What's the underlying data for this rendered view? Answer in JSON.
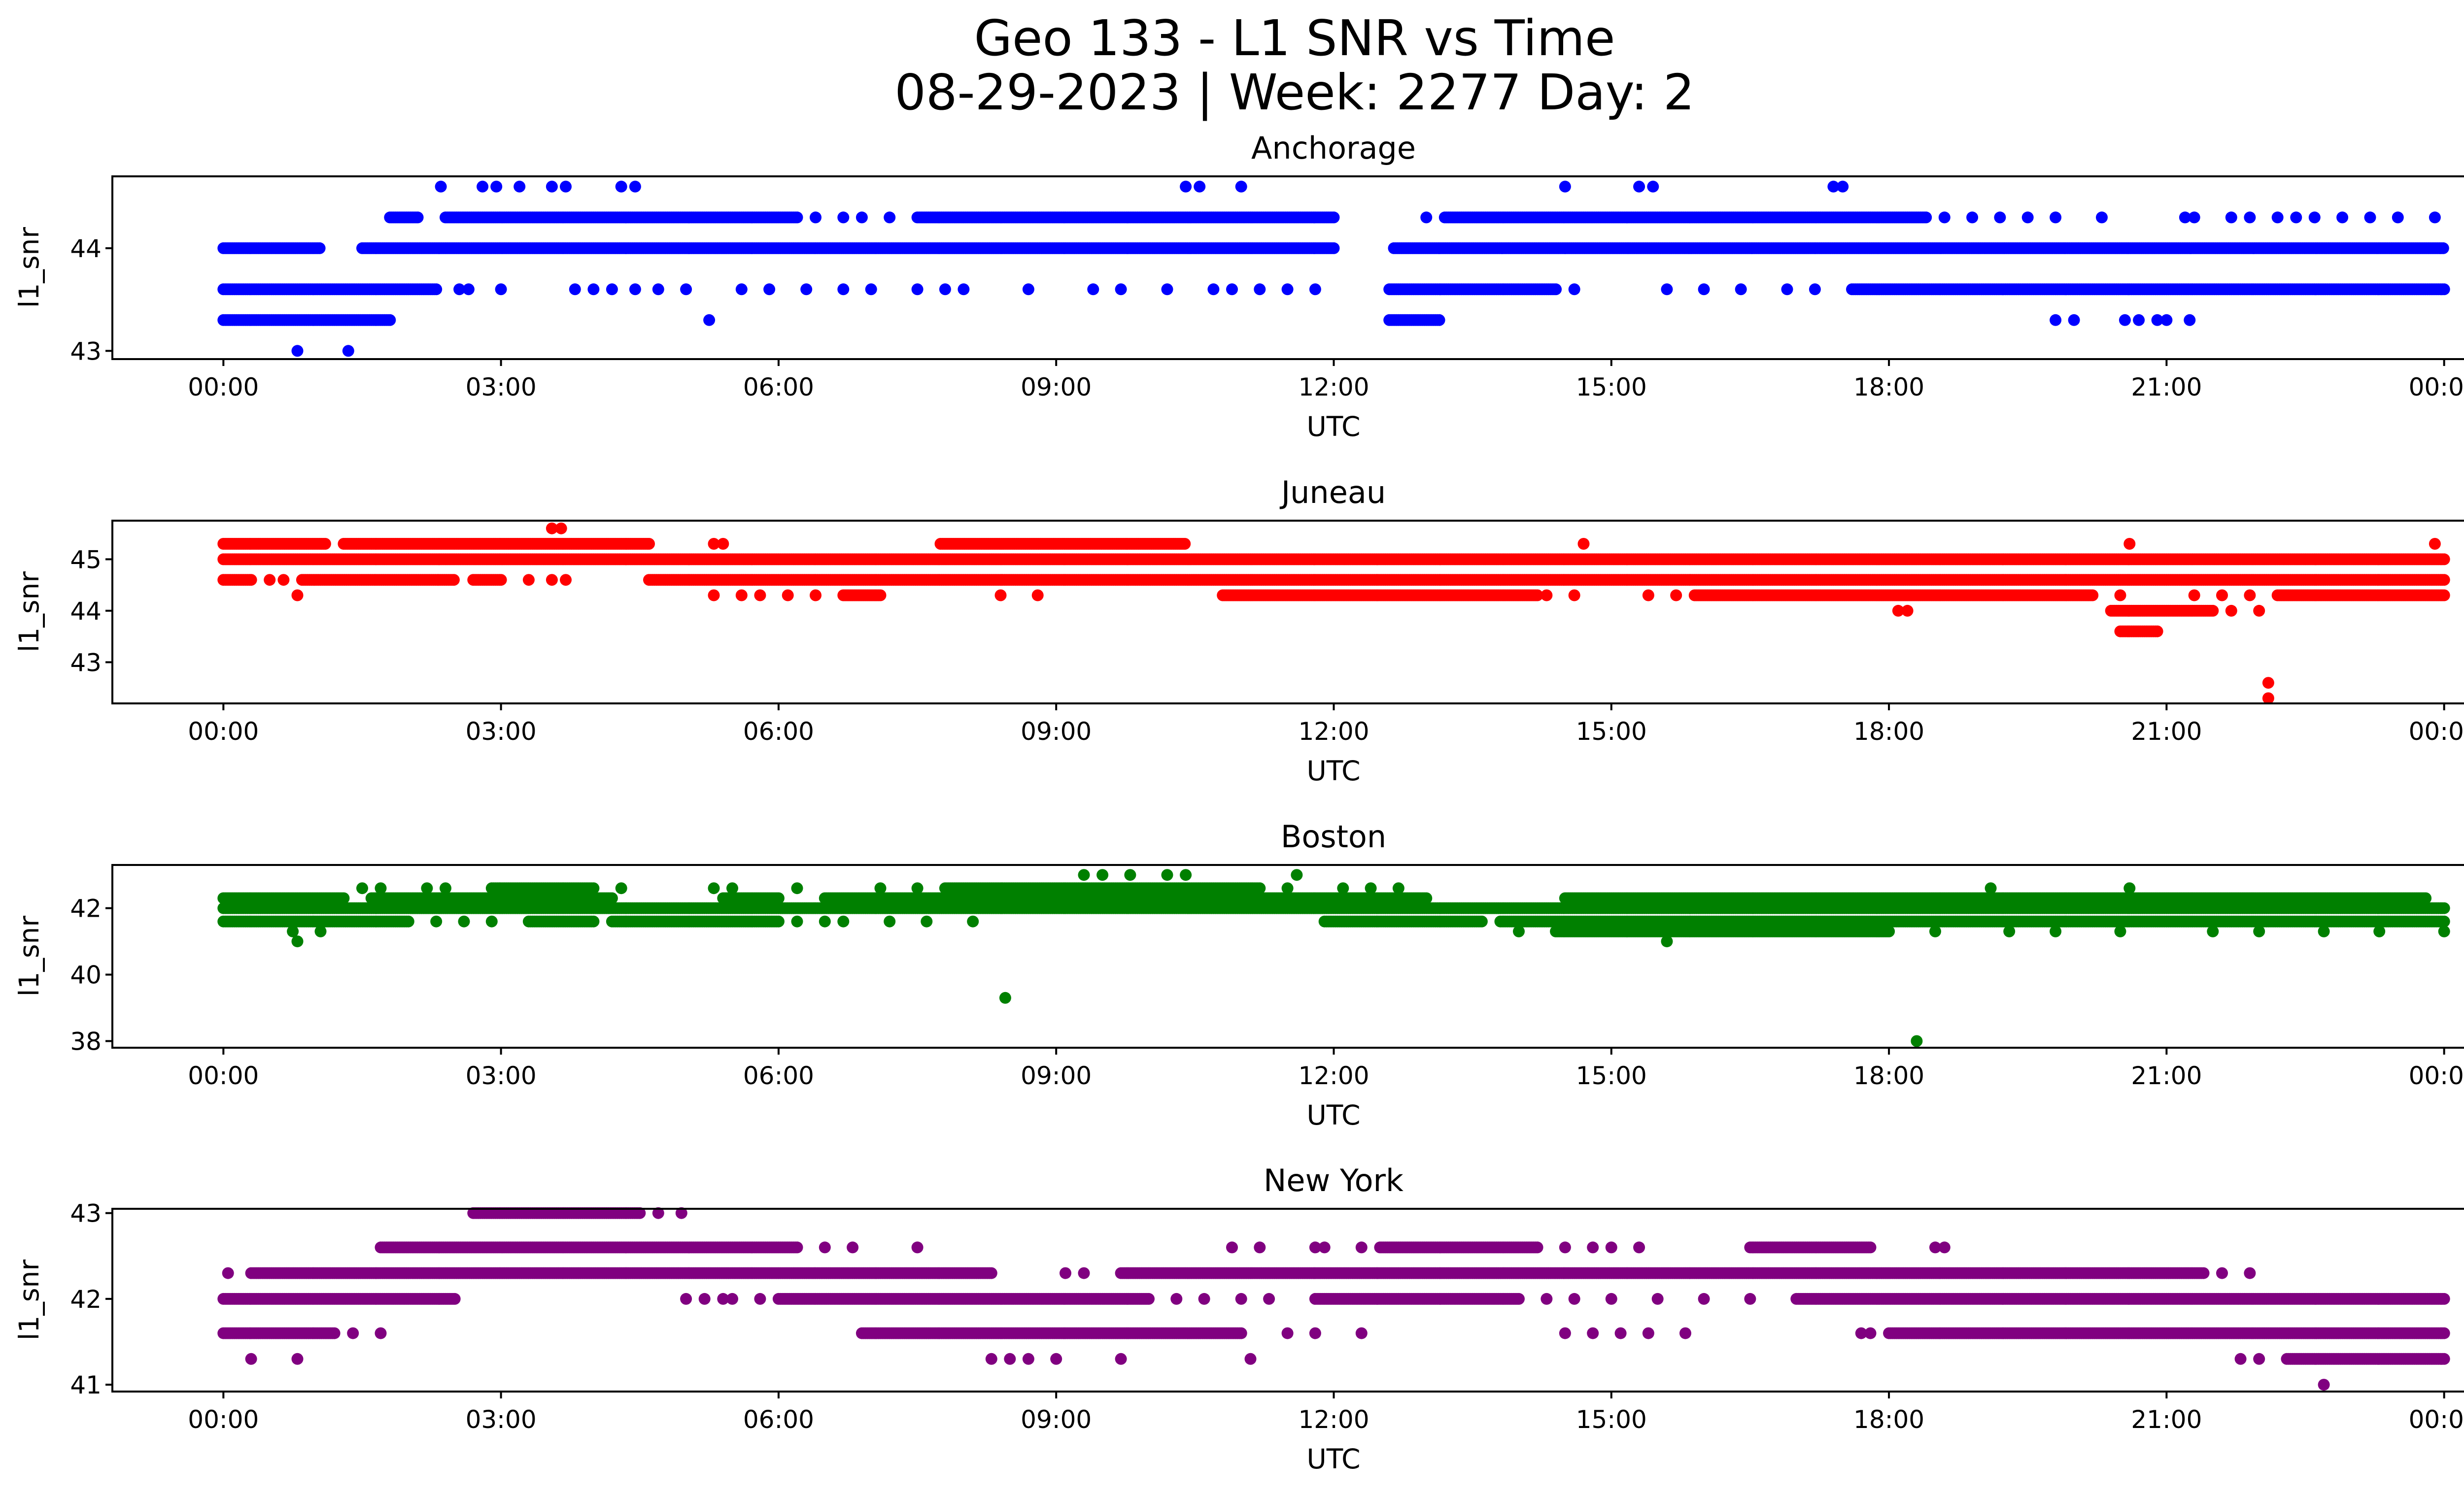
{
  "figure": {
    "title_line1": "Geo 133 - L1 SNR vs Time",
    "title_line2": "08-29-2023 | Week: 2277 Day: 2"
  },
  "chart_data": [
    {
      "type": "scatter",
      "title": "Anchorage",
      "xlabel": "UTC",
      "ylabel": "l1_snr",
      "color": "#0000ff",
      "x_ticks": [
        "00:00",
        "03:00",
        "06:00",
        "09:00",
        "12:00",
        "15:00",
        "18:00",
        "21:00",
        "00:00"
      ],
      "xlim_hours": [
        -1.2,
        25.2
      ],
      "ylim": [
        42.92,
        44.7
      ],
      "y_ticks": [
        43,
        44
      ],
      "series": [
        {
          "y": 44.0,
          "segments": [
            [
              0.0,
              1.05
            ],
            [
              1.5,
              12.0
            ],
            [
              12.65,
              24.0
            ]
          ]
        },
        {
          "y": 43.6,
          "segments": [
            [
              0.0,
              2.3
            ],
            [
              12.6,
              14.4
            ],
            [
              17.6,
              24.0
            ]
          ],
          "points": [
            2.55,
            2.65,
            3.0,
            3.8,
            4.0,
            4.2,
            4.45,
            4.7,
            5.0,
            5.6,
            5.9,
            6.3,
            6.7,
            7.0,
            7.5,
            7.8,
            8.0,
            8.7,
            9.4,
            9.7,
            10.2,
            10.7,
            10.9,
            11.2,
            11.5,
            11.8,
            14.6,
            15.6,
            16.0,
            16.4,
            16.9,
            17.2
          ]
        },
        {
          "y": 43.3,
          "segments": [
            [
              0.0,
              1.8
            ],
            [
              12.6,
              13.15
            ]
          ],
          "points": [
            5.25,
            19.8,
            20.0,
            20.55,
            20.7,
            20.9,
            21.0,
            21.25
          ]
        },
        {
          "y": 44.3,
          "segments": [
            [
              1.8,
              2.1
            ],
            [
              2.4,
              6.2
            ],
            [
              7.5,
              12.0
            ],
            [
              13.2,
              18.4
            ]
          ],
          "points": [
            6.4,
            6.7,
            6.9,
            7.2,
            13.0,
            18.6,
            18.9,
            19.2,
            19.5,
            19.8,
            20.3,
            21.2,
            21.3,
            21.7,
            21.9,
            22.2,
            22.4,
            22.6,
            22.9,
            23.2,
            23.5,
            23.9
          ]
        },
        {
          "y": 44.6,
          "points": [
            2.35,
            2.8,
            2.95,
            3.2,
            3.55,
            3.7,
            4.3,
            4.45,
            10.4,
            10.55,
            11.0,
            14.5,
            15.3,
            15.45,
            17.4,
            17.5
          ]
        },
        {
          "y": 43.0,
          "points": [
            0.8,
            1.35
          ]
        }
      ]
    },
    {
      "type": "scatter",
      "title": "Juneau",
      "xlabel": "UTC",
      "ylabel": "l1_snr",
      "color": "#ff0000",
      "x_ticks": [
        "00:00",
        "03:00",
        "06:00",
        "09:00",
        "12:00",
        "15:00",
        "18:00",
        "21:00",
        "00:00"
      ],
      "xlim_hours": [
        -1.2,
        25.2
      ],
      "ylim": [
        42.2,
        45.75
      ],
      "y_ticks": [
        43,
        44,
        45
      ],
      "series": [
        {
          "y": 45.0,
          "segments": [
            [
              0.0,
              24.0
            ]
          ]
        },
        {
          "y": 44.6,
          "segments": [
            [
              0.0,
              0.3
            ],
            [
              0.85,
              2.5
            ],
            [
              2.7,
              3.0
            ],
            [
              4.6,
              24.0
            ]
          ],
          "points": [
            0.5,
            0.65,
            3.3,
            3.55,
            3.7
          ]
        },
        {
          "y": 45.3,
          "segments": [
            [
              0.0,
              1.1
            ],
            [
              1.3,
              4.6
            ],
            [
              7.75,
              10.4
            ]
          ],
          "points": [
            5.3,
            5.4,
            14.7,
            20.6,
            23.9
          ]
        },
        {
          "y": 44.3,
          "segments": [
            [
              6.7,
              7.1
            ],
            [
              10.8,
              14.2
            ],
            [
              15.9,
              20.2
            ],
            [
              22.2,
              24.0
            ]
          ],
          "points": [
            0.8,
            5.3,
            5.6,
            5.8,
            6.1,
            6.4,
            8.4,
            8.8,
            14.3,
            14.6,
            15.4,
            15.7,
            20.5,
            21.3,
            21.6,
            21.9
          ]
        },
        {
          "y": 44.0,
          "segments": [
            [
              20.4,
              21.5
            ]
          ],
          "points": [
            18.1,
            18.2,
            21.7,
            22.0
          ]
        },
        {
          "y": 43.6,
          "segments": [
            [
              20.5,
              20.9
            ]
          ]
        },
        {
          "y": 45.6,
          "points": [
            3.55,
            3.65
          ]
        },
        {
          "y": 42.6,
          "points": [
            22.1
          ]
        },
        {
          "y": 42.3,
          "points": [
            22.1
          ]
        }
      ]
    },
    {
      "type": "scatter",
      "title": "Boston",
      "xlabel": "UTC",
      "ylabel": "l1_snr",
      "color": "#008000",
      "x_ticks": [
        "00:00",
        "03:00",
        "06:00",
        "09:00",
        "12:00",
        "15:00",
        "18:00",
        "21:00",
        "00:00"
      ],
      "xlim_hours": [
        -1.2,
        25.2
      ],
      "ylim": [
        37.8,
        43.3
      ],
      "y_ticks": [
        38,
        40,
        42
      ],
      "series": [
        {
          "y": 42.0,
          "segments": [
            [
              0.0,
              24.0
            ]
          ]
        },
        {
          "y": 41.6,
          "segments": [
            [
              0.0,
              2.0
            ],
            [
              3.3,
              4.0
            ],
            [
              4.2,
              6.0
            ],
            [
              11.9,
              13.6
            ],
            [
              13.8,
              24.0
            ]
          ],
          "points": [
            2.3,
            2.6,
            2.9,
            6.2,
            6.5,
            6.7,
            7.2,
            7.6,
            8.1
          ]
        },
        {
          "y": 42.3,
          "segments": [
            [
              0.0,
              1.3
            ],
            [
              1.6,
              4.2
            ],
            [
              5.4,
              6.0
            ],
            [
              6.5,
              13.0
            ],
            [
              14.5,
              23.8
            ]
          ]
        },
        {
          "y": 42.6,
          "segments": [
            [
              2.9,
              4.0
            ],
            [
              7.8,
              11.2
            ]
          ],
          "points": [
            1.5,
            1.7,
            2.2,
            2.4,
            4.3,
            5.3,
            5.5,
            6.2,
            7.1,
            7.5,
            11.5,
            12.1,
            12.4,
            12.7,
            19.1,
            20.6
          ]
        },
        {
          "y": 41.3,
          "segments": [
            [
              14.4,
              18.0
            ]
          ],
          "points": [
            0.75,
            1.05,
            14.0,
            18.5,
            19.3,
            19.8,
            20.5,
            21.5,
            22.0,
            22.7,
            23.3,
            24.0
          ]
        },
        {
          "y": 43.0,
          "points": [
            9.3,
            9.5,
            9.8,
            10.2,
            10.4,
            11.6
          ]
        },
        {
          "y": 41.0,
          "points": [
            0.8,
            15.6
          ]
        },
        {
          "y": 39.3,
          "points": [
            8.45
          ]
        },
        {
          "y": 38.0,
          "points": [
            18.3
          ]
        }
      ]
    },
    {
      "type": "scatter",
      "title": "New York",
      "xlabel": "UTC",
      "ylabel": "l1_snr",
      "color": "#800080",
      "x_ticks": [
        "00:00",
        "03:00",
        "06:00",
        "09:00",
        "12:00",
        "15:00",
        "18:00",
        "21:00",
        "00:00"
      ],
      "xlim_hours": [
        -1.2,
        25.2
      ],
      "ylim": [
        40.92,
        43.05
      ],
      "y_ticks": [
        41,
        42,
        43
      ],
      "series": [
        {
          "y": 42.0,
          "segments": [
            [
              0.0,
              2.5
            ],
            [
              6.0,
              10.0
            ],
            [
              11.8,
              14.0
            ],
            [
              17.0,
              24.0
            ]
          ],
          "points": [
            5.0,
            5.2,
            5.4,
            5.5,
            5.8,
            10.3,
            10.6,
            11.0,
            11.3,
            14.3,
            14.6,
            15.0,
            15.5,
            16.0,
            16.5
          ]
        },
        {
          "y": 41.6,
          "segments": [
            [
              0.0,
              1.2
            ],
            [
              6.9,
              11.0
            ],
            [
              18.0,
              24.0
            ]
          ],
          "points": [
            1.4,
            1.7,
            11.5,
            11.8,
            12.3,
            14.5,
            14.8,
            15.1,
            15.4,
            15.8,
            17.7,
            17.8
          ]
        },
        {
          "y": 42.3,
          "segments": [
            [
              0.3,
              8.3
            ],
            [
              9.7,
              21.4
            ]
          ],
          "points": [
            0.05,
            9.1,
            9.3,
            21.6,
            21.9
          ]
        },
        {
          "y": 42.6,
          "segments": [
            [
              1.7,
              6.2
            ],
            [
              12.5,
              14.2
            ],
            [
              16.5,
              17.8
            ]
          ],
          "points": [
            6.5,
            6.8,
            7.5,
            10.9,
            11.2,
            11.8,
            11.9,
            12.3,
            14.5,
            14.8,
            15.0,
            15.3,
            18.5,
            18.6
          ]
        },
        {
          "y": 43.0,
          "segments": [
            [
              2.7,
              4.5
            ]
          ],
          "points": [
            4.7,
            4.95
          ]
        },
        {
          "y": 41.3,
          "segments": [
            [
              22.3,
              24.0
            ]
          ],
          "points": [
            0.3,
            0.8,
            8.3,
            8.5,
            8.7,
            9.0,
            9.7,
            11.1,
            21.8,
            22.0
          ]
        },
        {
          "y": 41.0,
          "points": [
            22.7
          ]
        }
      ]
    }
  ]
}
